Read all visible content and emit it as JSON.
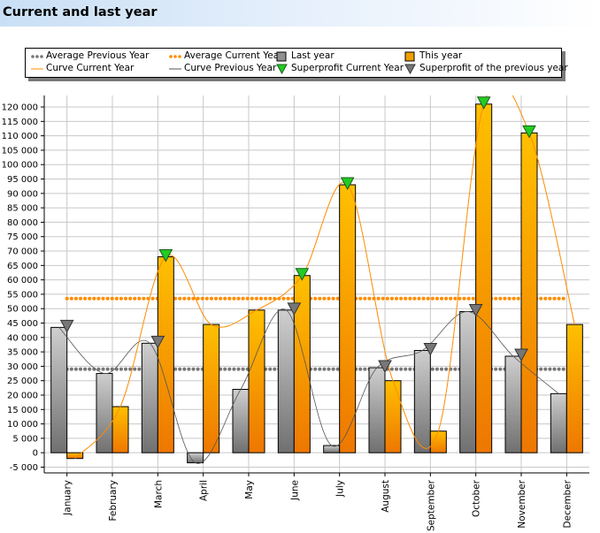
{
  "chart_data": {
    "type": "bar",
    "title": "Current and last year",
    "categories": [
      "January",
      "February",
      "March",
      "April",
      "May",
      "June",
      "July",
      "August",
      "September",
      "October",
      "November",
      "December"
    ],
    "series": [
      {
        "name": "Last year",
        "type": "bar",
        "color": "#909090",
        "values": [
          43500,
          27500,
          38000,
          -3500,
          22000,
          49500,
          2500,
          29500,
          35500,
          49000,
          33500,
          20500
        ]
      },
      {
        "name": "This year",
        "type": "bar",
        "color": "#f0a000",
        "values": [
          -2000,
          16000,
          68000,
          44500,
          49500,
          61500,
          93000,
          25000,
          7500,
          121000,
          111000,
          44500
        ]
      },
      {
        "name": "Average Previous Year",
        "type": "average",
        "color": "#777777",
        "value": 29000
      },
      {
        "name": "Average Current Year",
        "type": "average",
        "color": "#ff8c00",
        "value": 53500
      },
      {
        "name": "Curve Current Year",
        "type": "curve",
        "color": "#ff8c00",
        "source": "This year"
      },
      {
        "name": "Curve Previous Year",
        "type": "curve",
        "color": "#555555",
        "source": "Last year"
      },
      {
        "name": "Superprofit Current Year",
        "type": "marker",
        "color": "#22cc22",
        "categories": [
          "March",
          "June",
          "July",
          "October",
          "November"
        ]
      },
      {
        "name": "Superprofit of the previous year",
        "type": "marker",
        "color": "#777777",
        "categories": [
          "January",
          "March",
          "June",
          "August",
          "September",
          "October",
          "November"
        ]
      }
    ],
    "ylim": [
      -5000,
      122000
    ],
    "yticks": [
      -5000,
      0,
      5000,
      10000,
      15000,
      20000,
      25000,
      30000,
      35000,
      40000,
      45000,
      50000,
      55000,
      60000,
      65000,
      70000,
      75000,
      80000,
      85000,
      90000,
      95000,
      100000,
      105000,
      110000,
      115000,
      120000
    ],
    "ytick_labels": [
      "-5 000",
      "0",
      "5 000",
      "10 000",
      "15 000",
      "20 000",
      "25 000",
      "30 000",
      "35 000",
      "40 000",
      "45 000",
      "50 000",
      "55 000",
      "60 000",
      "65 000",
      "70 000",
      "75 000",
      "80 000",
      "85 000",
      "90 000",
      "95 000",
      "100 000",
      "105 000",
      "110 000",
      "115 000",
      "120 000"
    ],
    "xlabel": "",
    "ylabel": "",
    "grid": true,
    "legend_position": "top"
  },
  "legend": {
    "avg_prev": "Average Previous Year",
    "avg_cur": "Average Current Year",
    "last_year": "Last year",
    "this_year": "This year",
    "curve_cur": "Curve Current Year",
    "curve_prev": "Curve Previous Year",
    "sp_cur": "Superprofit Current Year",
    "sp_prev": "Superprofit of the previous year"
  },
  "colors": {
    "bar_last_year": "#909090",
    "bar_this_year": "#f0a000",
    "avg_prev": "#777777",
    "avg_cur": "#ff8c00",
    "curve_cur": "#ff8c00",
    "curve_prev": "#555555",
    "marker_cur": "#22cc22",
    "marker_prev": "#777777"
  }
}
